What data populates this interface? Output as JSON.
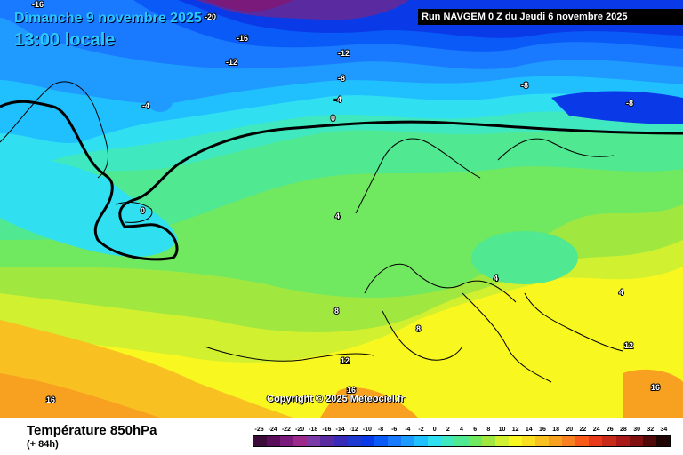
{
  "header": {
    "date": "Dimanche 9 novembre 2025",
    "time": "13:00 locale",
    "run": "Run NAVGEM 0 Z du Jeudi 6 novembre 2025"
  },
  "copyright": "Copyright © 2025 Meteociel.fr",
  "footer": {
    "variable": "Température 850hPa",
    "lead": "(+ 84h)"
  },
  "legend": {
    "labels": [
      "-26",
      "-24",
      "-22",
      "-20",
      "-18",
      "-16",
      "-14",
      "-12",
      "-10",
      "-8",
      "-6",
      "-4",
      "-2",
      "0",
      "2",
      "4",
      "6",
      "8",
      "10",
      "12",
      "14",
      "16",
      "18",
      "20",
      "22",
      "24",
      "26",
      "28",
      "30",
      "32",
      "34"
    ],
    "colors": [
      "#3d0b3a",
      "#5a0e5a",
      "#7a1a7a",
      "#9b2a8a",
      "#7a3aa8",
      "#5a2aa0",
      "#3a2ab8",
      "#1f3ad0",
      "#0a3ae8",
      "#0a5af8",
      "#1a7aff",
      "#1f9aff",
      "#20c0ff",
      "#30e0f0",
      "#40e8c0",
      "#50e890",
      "#70e860",
      "#a0e840",
      "#d0f030",
      "#f8f820",
      "#f8e020",
      "#f8c020",
      "#f8a020",
      "#f88020",
      "#f85a1a",
      "#e83a1a",
      "#c82a1a",
      "#a81a1a",
      "#801010",
      "#500808",
      "#200404"
    ]
  },
  "isotherm_labels": [
    "-20",
    "-16",
    "-16",
    "-12",
    "-12",
    "-8",
    "-8",
    "-8",
    "-4",
    "-4",
    "0",
    "0",
    "4",
    "4",
    "4",
    "8",
    "8",
    "12",
    "12",
    "16",
    "16",
    "16"
  ]
}
